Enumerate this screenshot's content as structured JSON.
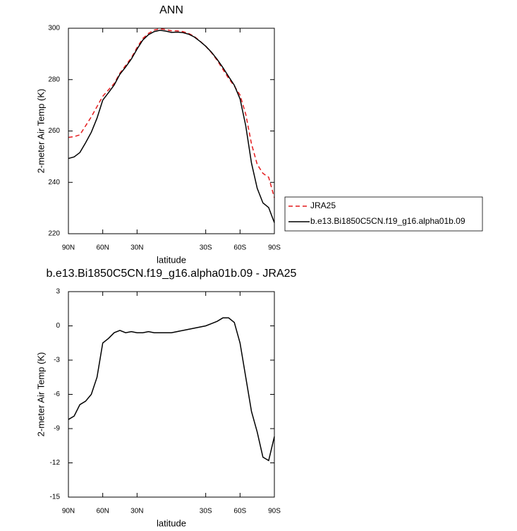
{
  "chart_data": [
    {
      "type": "line",
      "title": "ANN",
      "xlabel": "latitude",
      "ylabel": "2-meter Air Temp (K)",
      "x": [
        90,
        85,
        80,
        75,
        70,
        65,
        60,
        55,
        50,
        45,
        40,
        35,
        30,
        25,
        20,
        15,
        10,
        5,
        0,
        -5,
        -10,
        -15,
        -20,
        -25,
        -30,
        -35,
        -40,
        -45,
        -50,
        -55,
        -60,
        -65,
        -70,
        -75,
        -80,
        -85,
        -90
      ],
      "series": [
        {
          "name": "JRA25",
          "color": "#e41a1c",
          "dash": true,
          "values": [
            257.5,
            257.8,
            258.5,
            262,
            265.5,
            269.5,
            273.5,
            276,
            278.5,
            282.5,
            285.5,
            288.5,
            292.5,
            296,
            298,
            299.3,
            299.8,
            299.5,
            299,
            299,
            298.7,
            298,
            296.8,
            295,
            293,
            290.5,
            287.5,
            284,
            280.5,
            277.5,
            274,
            266.5,
            255,
            247,
            243.5,
            242,
            234
          ]
        },
        {
          "name": "b.e13.Bi1850C5CN.f19_g16.alpha01b.09",
          "color": "#000000",
          "dash": false,
          "values": [
            249.3,
            249.9,
            251.6,
            255.4,
            259.5,
            265,
            272,
            274.9,
            277.9,
            282.1,
            284.9,
            288,
            291.9,
            295.4,
            297.5,
            298.7,
            299.2,
            298.9,
            298.4,
            298.5,
            298.3,
            297.7,
            296.6,
            294.9,
            293,
            290.7,
            287.9,
            284.7,
            281.2,
            277.8,
            272.5,
            262,
            247.5,
            237.7,
            232,
            230.2,
            224.3
          ]
        }
      ],
      "xlim": [
        90,
        -90
      ],
      "xticks": [
        {
          "value": 90,
          "label": "90N"
        },
        {
          "value": 60,
          "label": "60N"
        },
        {
          "value": 30,
          "label": "30N"
        },
        {
          "value": -30,
          "label": "30S"
        },
        {
          "value": -60,
          "label": "60S"
        },
        {
          "value": -90,
          "label": "90S"
        }
      ],
      "ylim": [
        220,
        300
      ],
      "yticks": [
        220,
        240,
        260,
        280,
        300
      ],
      "legend": "outside-right"
    },
    {
      "type": "line",
      "title": "b.e13.Bi1850C5CN.f19_g16.alpha01b.09 - JRA25",
      "xlabel": "latitude",
      "ylabel": "2-meter Air Temp (K)",
      "x": [
        90,
        85,
        80,
        75,
        70,
        65,
        60,
        55,
        50,
        45,
        40,
        35,
        30,
        25,
        20,
        15,
        10,
        5,
        0,
        -5,
        -10,
        -15,
        -20,
        -25,
        -30,
        -35,
        -40,
        -45,
        -50,
        -55,
        -60,
        -65,
        -70,
        -75,
        -80,
        -85,
        -90
      ],
      "series": [
        {
          "color": "#000000",
          "dash": false,
          "values": [
            -8.2,
            -7.9,
            -6.9,
            -6.6,
            -6,
            -4.5,
            -1.5,
            -1.1,
            -0.6,
            -0.4,
            -0.6,
            -0.5,
            -0.6,
            -0.6,
            -0.5,
            -0.6,
            -0.6,
            -0.6,
            -0.6,
            -0.5,
            -0.4,
            -0.3,
            -0.2,
            -0.1,
            0,
            0.2,
            0.4,
            0.7,
            0.7,
            0.3,
            -1.5,
            -4.5,
            -7.5,
            -9.3,
            -11.5,
            -11.8,
            -9.7
          ]
        }
      ],
      "xlim": [
        90,
        -90
      ],
      "xticks": [
        {
          "value": 90,
          "label": "90N"
        },
        {
          "value": 60,
          "label": "60N"
        },
        {
          "value": 30,
          "label": "30N"
        },
        {
          "value": -30,
          "label": "30S"
        },
        {
          "value": -60,
          "label": "60S"
        },
        {
          "value": -90,
          "label": "90S"
        }
      ],
      "ylim": [
        -15,
        3
      ],
      "yticks": [
        -15,
        -12,
        -9,
        -6,
        -3,
        0,
        3
      ]
    }
  ]
}
